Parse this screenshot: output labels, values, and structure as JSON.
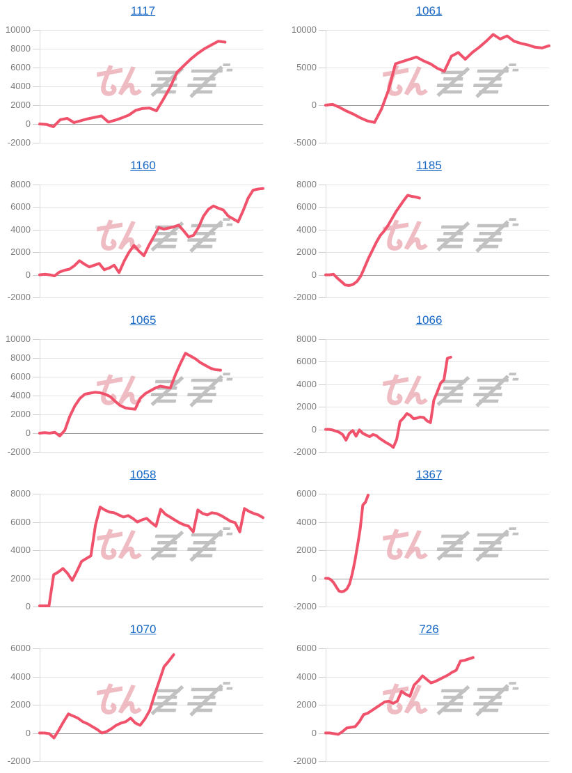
{
  "page": {
    "background": "#ffffff"
  },
  "style": {
    "line_color": "#f0516b",
    "title_color": "#1767c5",
    "grid_color": "#e4e4e4",
    "zero_line_color": "#9b9b9b",
    "axis_line_color": "#d9d9d9",
    "tick_dash_color": "#cfcfcf",
    "tick_label_color": "#7b7b7b"
  },
  "watermark": {
    "text": "みんかぶ",
    "pink_part": "みん",
    "gray_part": "かぶ",
    "pink_color": "#eaacb4",
    "gray_color": "#b2b2b2"
  },
  "chart_data": [
    {
      "type": "line",
      "title": "1117",
      "ylim": [
        -2000,
        10000
      ],
      "y_ticks": [
        10000,
        8000,
        6000,
        4000,
        2000,
        0,
        -2000
      ],
      "x_span": 0.83,
      "values": [
        0,
        -50,
        -300,
        450,
        600,
        150,
        350,
        550,
        700,
        850,
        200,
        400,
        650,
        950,
        1450,
        1650,
        1700,
        1400,
        2600,
        3900,
        5500,
        6200,
        6900,
        7500,
        8000,
        8400,
        8800,
        8700
      ]
    },
    {
      "type": "line",
      "title": "1061",
      "ylim": [
        -5000,
        10000
      ],
      "y_ticks": [
        10000,
        5000,
        0,
        -5000
      ],
      "x_span": 1.0,
      "values": [
        0,
        100,
        -300,
        -800,
        -1200,
        -1700,
        -2100,
        -2300,
        -500,
        2000,
        5500,
        5800,
        6100,
        6400,
        5900,
        5500,
        4900,
        4500,
        6500,
        7000,
        6100,
        7000,
        7700,
        8500,
        9400,
        8800,
        9200,
        8500,
        8200,
        8000,
        7700,
        7600,
        7900
      ]
    },
    {
      "type": "line",
      "title": "1160",
      "ylim": [
        -2000,
        8000
      ],
      "y_ticks": [
        8000,
        6000,
        4000,
        2000,
        0,
        -2000
      ],
      "x_span": 1.0,
      "values": [
        0,
        50,
        0,
        -100,
        250,
        400,
        500,
        800,
        1250,
        950,
        700,
        850,
        1000,
        450,
        600,
        850,
        200,
        1200,
        2000,
        2600,
        2100,
        1700,
        2600,
        3400,
        4200,
        4050,
        4150,
        4250,
        4400,
        3900,
        3350,
        3500,
        4200,
        5200,
        5800,
        6100,
        5900,
        5750,
        5200,
        4950,
        4700,
        5700,
        6800,
        7500,
        7600,
        7650
      ]
    },
    {
      "type": "line",
      "title": "1185",
      "ylim": [
        -2000,
        8000
      ],
      "y_ticks": [
        8000,
        6000,
        4000,
        2000,
        0,
        -2000
      ],
      "x_span": 0.42,
      "values": [
        0,
        0,
        50,
        -300,
        -600,
        -900,
        -950,
        -850,
        -600,
        -100,
        700,
        1500,
        2200,
        2900,
        3500,
        3900,
        4400,
        5000,
        5600,
        6100,
        6600,
        7050,
        6950,
        6900,
        6800
      ]
    },
    {
      "type": "line",
      "title": "1065",
      "ylim": [
        -2000,
        10000
      ],
      "y_ticks": [
        10000,
        8000,
        6000,
        4000,
        2000,
        0,
        -2000
      ],
      "x_span": 0.81,
      "values": [
        0,
        50,
        0,
        100,
        -300,
        300,
        1800,
        2900,
        3700,
        4150,
        4250,
        4350,
        4300,
        4150,
        3900,
        3400,
        2950,
        2700,
        2600,
        2550,
        3700,
        4200,
        4500,
        4800,
        5000,
        4900,
        4800,
        6200,
        7400,
        8500,
        8200,
        7900,
        7500,
        7200,
        6900,
        6750,
        6700
      ]
    },
    {
      "type": "line",
      "title": "1066",
      "ylim": [
        -2000,
        8000
      ],
      "y_ticks": [
        8000,
        6000,
        4000,
        2000,
        0,
        -2000
      ],
      "x_span": 0.56,
      "values": [
        0,
        0,
        -50,
        -150,
        -250,
        -450,
        -950,
        -350,
        -100,
        -600,
        -50,
        -350,
        -500,
        -650,
        -450,
        -550,
        -800,
        -1000,
        -1200,
        -1350,
        -1600,
        -900,
        700,
        1000,
        1400,
        1250,
        950,
        1000,
        1100,
        1050,
        750,
        600,
        2600,
        3300,
        4100,
        4400,
        6300,
        6400
      ]
    },
    {
      "type": "line",
      "title": "1058",
      "ylim": [
        0,
        8000
      ],
      "y_ticks": [
        8000,
        6000,
        4000,
        2000,
        0
      ],
      "x_span": 1.0,
      "values": [
        50,
        50,
        50,
        2250,
        2450,
        2700,
        2350,
        1850,
        2500,
        3200,
        3400,
        3600,
        5800,
        7050,
        6850,
        6700,
        6650,
        6500,
        6350,
        6450,
        6250,
        6000,
        6150,
        6250,
        5950,
        5700,
        6900,
        6550,
        6350,
        6150,
        5950,
        5800,
        5700,
        5300,
        6850,
        6600,
        6500,
        6650,
        6600,
        6450,
        6250,
        6050,
        5950,
        5300,
        6950,
        6750,
        6600,
        6500,
        6300
      ]
    },
    {
      "type": "line",
      "title": "1367",
      "ylim": [
        -2000,
        6000
      ],
      "y_ticks": [
        6000,
        4000,
        2000,
        0,
        -2000
      ],
      "x_span": 0.19,
      "values": [
        0,
        0,
        -100,
        -300,
        -600,
        -900,
        -950,
        -900,
        -750,
        -400,
        300,
        1200,
        2300,
        3500,
        5200,
        5400,
        5900
      ]
    },
    {
      "type": "line",
      "title": "1070",
      "ylim": [
        -2000,
        6000
      ],
      "y_ticks": [
        6000,
        4000,
        2000,
        0,
        -2000
      ],
      "x_span": 0.6,
      "values": [
        0,
        0,
        -50,
        -350,
        200,
        800,
        1350,
        1200,
        1050,
        800,
        650,
        450,
        250,
        0,
        100,
        300,
        550,
        700,
        800,
        1050,
        700,
        550,
        1000,
        1600,
        2700,
        3700,
        4700,
        5100,
        5550
      ]
    },
    {
      "type": "line",
      "title": "726",
      "ylim": [
        -2000,
        6000
      ],
      "y_ticks": [
        6000,
        4000,
        2000,
        0,
        -2000
      ],
      "x_span": 0.66,
      "values": [
        0,
        0,
        -50,
        -100,
        100,
        350,
        400,
        450,
        800,
        1300,
        1400,
        1600,
        1800,
        2000,
        2200,
        2250,
        2100,
        2250,
        2950,
        2750,
        2600,
        3400,
        3700,
        4050,
        3800,
        3550,
        3650,
        3800,
        3950,
        4100,
        4300,
        4450,
        5100,
        5150,
        5250,
        5350
      ]
    }
  ]
}
